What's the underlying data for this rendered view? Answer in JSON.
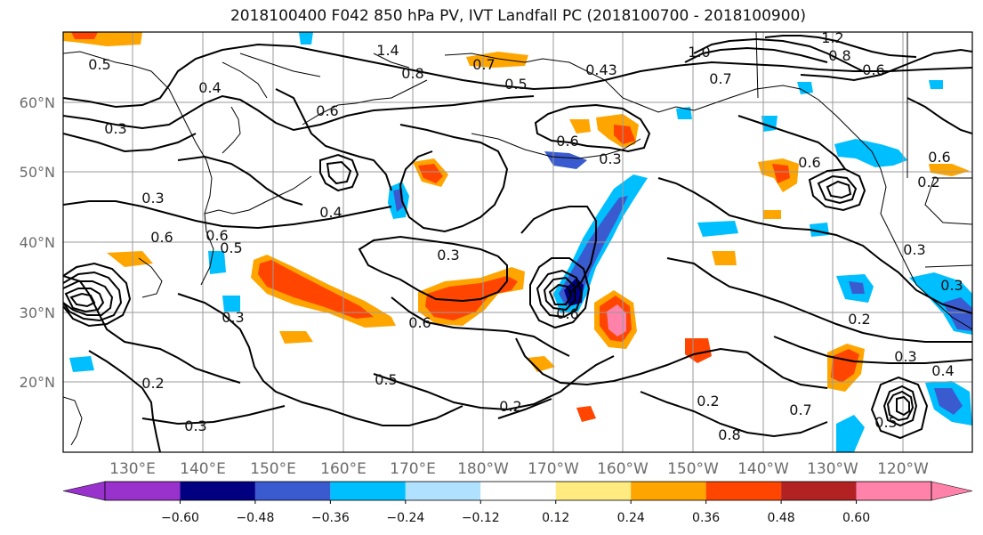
{
  "title": "2018100400 F042 850 hPa PV, IVT Landfall PC (2018100700 - 2018100900)",
  "map": {
    "lat_labels": [
      "20°N",
      "30°N",
      "40°N",
      "50°N",
      "60°N"
    ],
    "lon_labels": [
      "130°E",
      "140°E",
      "150°E",
      "160°E",
      "170°E",
      "180°W",
      "170°W",
      "160°W",
      "150°W",
      "140°W",
      "130°W",
      "120°W"
    ]
  },
  "colorbar": {
    "colors": [
      "#9932cc",
      "#000080",
      "#3a5bcf",
      "#00bfff",
      "#b0e2ff",
      "#ffffff",
      "#ffeb80",
      "#ffa500",
      "#ff4500",
      "#b22222",
      "#ff82ab"
    ],
    "tick_labels": [
      "−0.60",
      "−0.48",
      "−0.36",
      "−0.24",
      "−0.12",
      "0.12",
      "0.24",
      "0.36",
      "0.48",
      "0.60"
    ]
  },
  "contour_labels": [
    "0.5",
    "1.4",
    "0.8",
    "0.7",
    "0.5",
    "1.0",
    "1.2",
    "0.8",
    "0.6",
    "0.43",
    "0.7",
    "0.6",
    "0.4",
    "0.6",
    "0.4",
    "0.3",
    "0.6",
    "0.3",
    "0.5",
    "0.6",
    "0.3",
    "0.3",
    "0.6",
    "0.5",
    "0.6",
    "0.3",
    "0.6",
    "0.2",
    "0.3",
    "0.2",
    "0.3",
    "0.2",
    "0.3",
    "0.2",
    "0.2",
    "0.8",
    "0.7",
    "0.6",
    "0.4",
    "0.3",
    "0.5"
  ]
}
